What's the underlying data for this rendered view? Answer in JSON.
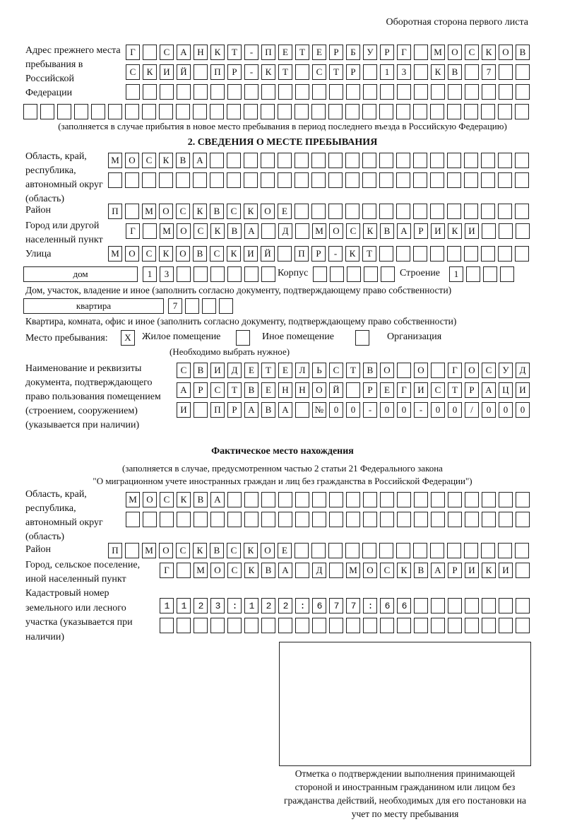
{
  "header": {
    "sheet_side": "Оборотная сторона первого листа"
  },
  "prev_address": {
    "label": "Адрес прежнего места пребывания в Российской Федерации",
    "rows": [
      "Г САНКТ-ПЕТЕРБУРГ МОСКОВ",
      "СКИЙ ПР-КТ СТР 13 КВ 7",
      "",
      ""
    ],
    "note": "(заполняется в случае прибытия в новое место пребывания в период последнего въезда в Российскую Федерацию)"
  },
  "section2": {
    "title": "2. СВЕДЕНИЯ О МЕСТЕ ПРЕБЫВАНИЯ",
    "region_label": "Область, край, республика, автономный округ (область)",
    "region_rows": [
      "МОСКВА",
      ""
    ],
    "district_label": "Район",
    "district": "П МОСКВСКОЕ",
    "city_label": "Город или другой населенный пункт",
    "city": "Г МОСКВА Д МОСКВАРИКИ",
    "street_label": "Улица",
    "street": "МОСКОВСКИЙ ПР-КТ",
    "house_type": "дом",
    "house_number": "13",
    "korpus_label": "Корпус",
    "korpus": "",
    "building_label": "Строение",
    "building": "1",
    "house_note": "Дом, участок, владение и иное (заполнить согласно документу, подтверждающему право собственности)",
    "apartment_type": "квартира",
    "apartment_number": "7",
    "apartment_note": "Квартира, комната, офис и иное (заполнить согласно документу, подтверждающему право собственности)",
    "stay_place_label": "Место пребывания:",
    "stay_options": [
      {
        "label": "Жилое помещение",
        "mark": "X",
        "checked": true
      },
      {
        "label": "Иное помещение",
        "mark": "",
        "checked": false
      },
      {
        "label": "Организация",
        "mark": "",
        "checked": false
      }
    ],
    "stay_note": "(Необходимо выбрать нужное)",
    "document_label": "Наименование и реквизиты документа, подтверждающего право пользования помещением (строением, сооружением) (указывается при наличии)",
    "document_rows": [
      "СВИДЕТЕЛЬСТВО О ГОСУД",
      "АРСТВЕННОЙ РЕГИСТРАЦИ",
      "И ПРАВА №00-00-00/000"
    ]
  },
  "actual": {
    "title": "Фактическое место нахождения",
    "note1": "(заполняется в случае, предусмотренном частью 2 статьи 21 Федерального закона",
    "note2": "\"О миграционном учете иностранных граждан и лиц без гражданства в Российской Федерации\")",
    "region_label": "Область, край, республика, автономный округ (область)",
    "region_rows": [
      "МОСКВА",
      ""
    ],
    "district_label": "Район",
    "district": "П МОСКВСКОЕ",
    "city_label": "Город, сельское поселение, иной населенный пункт",
    "city": "Г МОСКВА Д МОСКВАРИКИ",
    "cadastral_label": "Кадастровый номер земельного или лесного участка (указывается при наличии)",
    "cadastral_rows": [
      "1123:122:677:66",
      ""
    ]
  },
  "stamp": {
    "caption": "Отметка о подтверждении выполнения принимающей стороной и иностранным гражданином или лицом без гражданства действий, необходимых для его постановки на учет по месту пребывания"
  }
}
